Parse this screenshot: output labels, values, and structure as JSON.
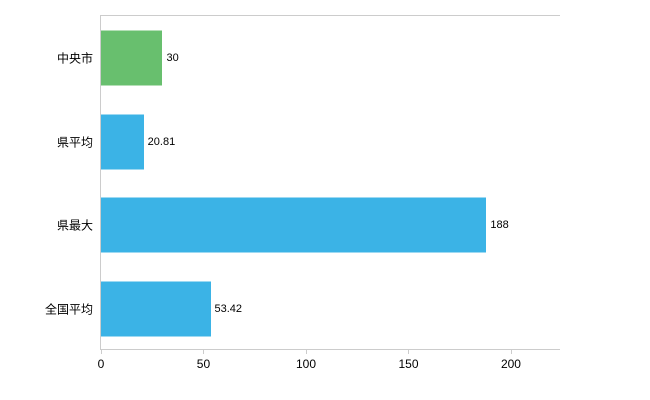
{
  "chart_data": {
    "type": "bar",
    "orientation": "horizontal",
    "title": "",
    "xlabel": "",
    "ylabel": "",
    "categories": [
      "中央市",
      "県平均",
      "県最大",
      "全国平均"
    ],
    "values": [
      30,
      20.81,
      188,
      53.42
    ],
    "value_labels": [
      "30",
      "20.81",
      "188",
      "53.42"
    ],
    "bar_colors": [
      "#68bf6e",
      "#3bb3e6",
      "#3bb3e6",
      "#3bb3e6"
    ],
    "x_ticks": [
      0,
      50,
      100,
      150,
      200
    ],
    "x_tick_labels": [
      "0",
      "50",
      "100",
      "150",
      "200"
    ],
    "xlim": [
      0,
      224.4
    ],
    "grid": false,
    "legend": false,
    "axis_color": "#cccccc",
    "text_color": "#000000",
    "background": "#ffffff"
  }
}
